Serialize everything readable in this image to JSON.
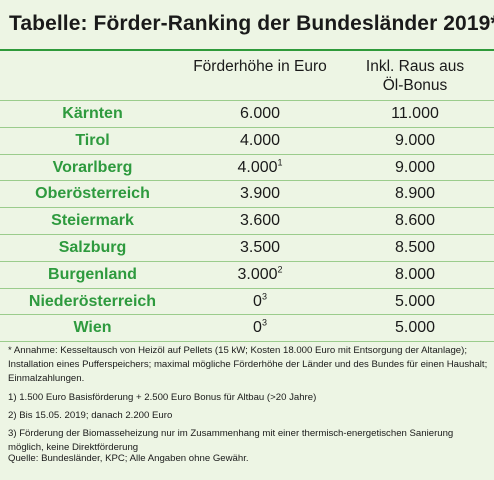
{
  "title": "Tabelle: Förder-Ranking der Bundesländer 2019*",
  "columns": {
    "c1": "Förderhöhe in Euro",
    "c2_line1": "Inkl. Raus aus",
    "c2_line2": "Öl-Bonus"
  },
  "rows": [
    {
      "land": "Kärnten",
      "v1": "6.000",
      "sup": "",
      "v2": "11.000"
    },
    {
      "land": "Tirol",
      "v1": "4.000",
      "sup": "",
      "v2": "9.000"
    },
    {
      "land": "Vorarlberg",
      "v1": "4.000",
      "sup": "1",
      "v2": "9.000"
    },
    {
      "land": "Oberösterreich",
      "v1": "3.900",
      "sup": "",
      "v2": "8.900"
    },
    {
      "land": "Steiermark",
      "v1": "3.600",
      "sup": "",
      "v2": "8.600"
    },
    {
      "land": "Salzburg",
      "v1": "3.500",
      "sup": "",
      "v2": "8.500"
    },
    {
      "land": "Burgenland",
      "v1": "3.000",
      "sup": "2",
      "v2": "8.000"
    },
    {
      "land": "Niederösterreich",
      "v1": "0",
      "sup": "3",
      "v2": "5.000"
    },
    {
      "land": "Wien",
      "v1": "0",
      "sup": "3",
      "v2": "5.000"
    }
  ],
  "notes": {
    "annahme": "* Annahme: Kesseltausch von Heizöl auf Pellets (15 kW; Kosten 18.000 Euro mit Entsorgung der Altanlage); Installation eines Pufferspeichers; maximal mögliche Förderhöhe der Länder und des Bundes für einen Haushalt; Einmalzahlungen.",
    "n1": "1) 1.500 Euro Basisförderung + 2.500 Euro Bonus für Altbau (>20 Jahre)",
    "n2": "2) Bis 15.05. 2019; danach 2.200 Euro",
    "n3": "3) Förderung der Biomasseheizung nur im Zusammenhang mit einer thermisch-energetischen Sanierung möglich, keine Direktförderung"
  },
  "source": "Quelle: Bundesländer, KPC; Alle Angaben ohne Gewähr."
}
